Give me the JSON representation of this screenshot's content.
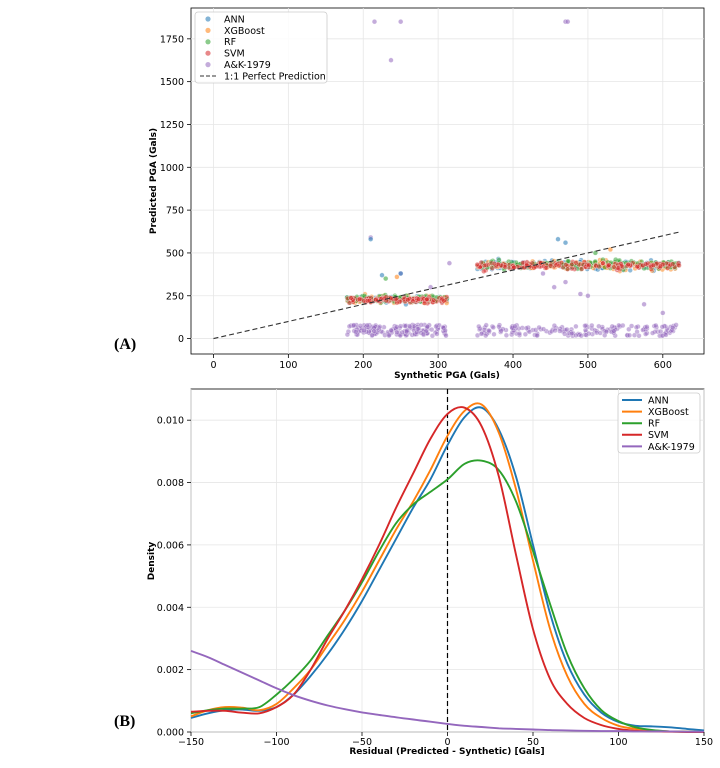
{
  "chart_data": [
    {
      "panel_label": "(A)",
      "type": "scatter",
      "xlabel": "Synthetic PGA (Gals)",
      "ylabel": "Predicted PGA (Gals)",
      "xlim": [
        -30,
        655
      ],
      "ylim": [
        -90,
        1930
      ],
      "xticks": [
        0,
        100,
        200,
        300,
        400,
        500,
        600
      ],
      "yticks": [
        0,
        250,
        500,
        750,
        1000,
        1250,
        1500,
        1750
      ],
      "grid": true,
      "legend_position": "upper-left",
      "series": [
        {
          "name": "ANN",
          "color": "#1f77b4",
          "clusters": [
            {
              "x_range": [
                178,
                312
              ],
              "y_center": 228,
              "y_spread": 18,
              "count": 110
            },
            {
              "x_range": [
                352,
                622
              ],
              "y_center": 428,
              "y_spread": 22,
              "count": 150
            }
          ],
          "outliers": [
            [
              210,
              580
            ],
            [
              225,
              370
            ],
            [
              250,
              380
            ],
            [
              470,
              560
            ],
            [
              460,
              580
            ]
          ]
        },
        {
          "name": "XGBoost",
          "color": "#ff7f0e",
          "clusters": [
            {
              "x_range": [
                178,
                312
              ],
              "y_center": 228,
              "y_spread": 18,
              "count": 110
            },
            {
              "x_range": [
                352,
                622
              ],
              "y_center": 428,
              "y_spread": 22,
              "count": 150
            }
          ],
          "outliers": [
            [
              245,
              360
            ],
            [
              530,
              520
            ]
          ]
        },
        {
          "name": "RF",
          "color": "#2ca02c",
          "clusters": [
            {
              "x_range": [
                178,
                312
              ],
              "y_center": 230,
              "y_spread": 20,
              "count": 110
            },
            {
              "x_range": [
                352,
                622
              ],
              "y_center": 430,
              "y_spread": 25,
              "count": 150
            }
          ],
          "outliers": [
            [
              230,
              350
            ],
            [
              510,
              500
            ]
          ]
        },
        {
          "name": "SVM",
          "color": "#d62728",
          "clusters": [
            {
              "x_range": [
                178,
                312
              ],
              "y_center": 226,
              "y_spread": 14,
              "count": 110
            },
            {
              "x_range": [
                352,
                622
              ],
              "y_center": 426,
              "y_spread": 18,
              "count": 150
            }
          ],
          "outliers": []
        },
        {
          "name": "A&K-1979",
          "color": "#9467bd",
          "clusters": [
            {
              "x_range": [
                178,
                312
              ],
              "y_center": 45,
              "y_spread": 40,
              "count": 160
            },
            {
              "x_range": [
                352,
                622
              ],
              "y_center": 45,
              "y_spread": 40,
              "count": 170
            }
          ],
          "outliers": [
            [
              215,
              1850
            ],
            [
              250,
              1850
            ],
            [
              237,
              1625
            ],
            [
              470,
              1850
            ],
            [
              473,
              1850
            ],
            [
              210,
              590
            ],
            [
              250,
              380
            ],
            [
              290,
              300
            ],
            [
              315,
              440
            ],
            [
              440,
              380
            ],
            [
              455,
              300
            ],
            [
              470,
              330
            ],
            [
              490,
              260
            ],
            [
              500,
              250
            ],
            [
              575,
              200
            ],
            [
              600,
              150
            ]
          ]
        },
        {
          "name": "1:1 Perfect Prediction",
          "color": "#333333",
          "style": "dashed",
          "x": [
            0,
            622
          ],
          "y": [
            0,
            622
          ]
        }
      ]
    },
    {
      "panel_label": "(B)",
      "type": "line",
      "xlabel": "Residual (Predicted - Synthetic) [Gals]",
      "ylabel": "Density",
      "xlim": [
        -150,
        150
      ],
      "ylim": [
        0,
        0.011
      ],
      "xticks": [
        -150,
        -100,
        -50,
        0,
        50,
        100,
        150
      ],
      "yticks": [
        0.0,
        0.002,
        0.004,
        0.006,
        0.008,
        0.01
      ],
      "ytick_labels": [
        "0.000",
        "0.002",
        "0.004",
        "0.006",
        "0.008",
        "0.010"
      ],
      "vline_x": 0,
      "grid": true,
      "legend_position": "upper-right",
      "series": [
        {
          "name": "ANN",
          "color": "#1f77b4",
          "x": [
            -150,
            -140,
            -130,
            -120,
            -110,
            -100,
            -90,
            -80,
            -70,
            -60,
            -50,
            -40,
            -30,
            -20,
            -10,
            0,
            10,
            20,
            30,
            40,
            50,
            60,
            70,
            80,
            90,
            100,
            110,
            120,
            130,
            140,
            150
          ],
          "y": [
            0.00045,
            0.0006,
            0.0007,
            0.00072,
            0.00068,
            0.0008,
            0.0012,
            0.0018,
            0.0025,
            0.0033,
            0.0042,
            0.0052,
            0.0062,
            0.0072,
            0.0081,
            0.0092,
            0.0101,
            0.0104,
            0.0097,
            0.0082,
            0.006,
            0.0038,
            0.0022,
            0.0012,
            0.00062,
            0.00032,
            0.0002,
            0.00018,
            0.00015,
            0.0001,
            5e-05
          ]
        },
        {
          "name": "XGBoost",
          "color": "#ff7f0e",
          "x": [
            -150,
            -140,
            -130,
            -120,
            -110,
            -100,
            -90,
            -80,
            -70,
            -60,
            -50,
            -40,
            -30,
            -20,
            -10,
            0,
            10,
            20,
            30,
            40,
            50,
            60,
            70,
            80,
            90,
            100,
            110,
            120,
            130,
            140,
            150
          ],
          "y": [
            0.0005,
            0.0007,
            0.0008,
            0.00078,
            0.0007,
            0.0009,
            0.0014,
            0.002,
            0.0028,
            0.0036,
            0.0045,
            0.0055,
            0.0065,
            0.0074,
            0.0084,
            0.0095,
            0.0103,
            0.0105,
            0.0096,
            0.0078,
            0.0055,
            0.0033,
            0.0018,
            0.0009,
            0.00045,
            0.0002,
            0.0001,
            5e-05,
            2e-05,
            1e-05,
            0.0
          ]
        },
        {
          "name": "RF",
          "color": "#2ca02c",
          "x": [
            -150,
            -140,
            -130,
            -120,
            -110,
            -100,
            -90,
            -80,
            -70,
            -60,
            -50,
            -40,
            -30,
            -20,
            -10,
            0,
            10,
            20,
            30,
            40,
            50,
            60,
            70,
            80,
            90,
            100,
            110,
            120,
            130,
            140,
            150
          ],
          "y": [
            0.0006,
            0.0007,
            0.00075,
            0.00075,
            0.0008,
            0.0012,
            0.0017,
            0.0023,
            0.0031,
            0.0039,
            0.0048,
            0.0058,
            0.0067,
            0.0073,
            0.0077,
            0.0081,
            0.0086,
            0.0087,
            0.0084,
            0.0074,
            0.0058,
            0.0041,
            0.0025,
            0.0014,
            0.0007,
            0.00035,
            0.00015,
            6e-05,
            2e-05,
            1e-05,
            0.0
          ]
        },
        {
          "name": "SVM",
          "color": "#d62728",
          "x": [
            -150,
            -140,
            -130,
            -120,
            -110,
            -100,
            -90,
            -80,
            -70,
            -60,
            -50,
            -40,
            -30,
            -20,
            -10,
            0,
            10,
            20,
            30,
            40,
            50,
            60,
            70,
            80,
            90,
            100,
            110,
            120,
            130,
            140,
            150
          ],
          "y": [
            0.00065,
            0.00068,
            0.00068,
            0.00062,
            0.0006,
            0.0008,
            0.0012,
            0.002,
            0.003,
            0.0039,
            0.0049,
            0.006,
            0.0072,
            0.0083,
            0.0094,
            0.0102,
            0.0104,
            0.0098,
            0.0082,
            0.0057,
            0.0033,
            0.0017,
            0.0009,
            0.00045,
            0.00022,
            0.0001,
            4e-05,
            2e-05,
            1e-05,
            0.0,
            0.0
          ]
        },
        {
          "name": "A&K-1979",
          "color": "#9467bd",
          "x": [
            -150,
            -140,
            -130,
            -120,
            -110,
            -100,
            -90,
            -80,
            -70,
            -60,
            -50,
            -40,
            -30,
            -20,
            -10,
            0,
            10,
            20,
            30,
            40,
            50,
            60,
            70,
            80,
            90,
            100,
            110,
            120,
            130,
            140,
            150
          ],
          "y": [
            0.0026,
            0.0024,
            0.00215,
            0.0019,
            0.00165,
            0.0014,
            0.00118,
            0.001,
            0.00085,
            0.00073,
            0.00063,
            0.00055,
            0.00047,
            0.0004,
            0.00033,
            0.00026,
            0.0002,
            0.00016,
            0.00012,
            0.0001,
            8e-05,
            6e-05,
            5e-05,
            4e-05,
            3e-05,
            3e-05,
            2e-05,
            2e-05,
            2e-05,
            1e-05,
            1e-05
          ]
        }
      ]
    }
  ]
}
